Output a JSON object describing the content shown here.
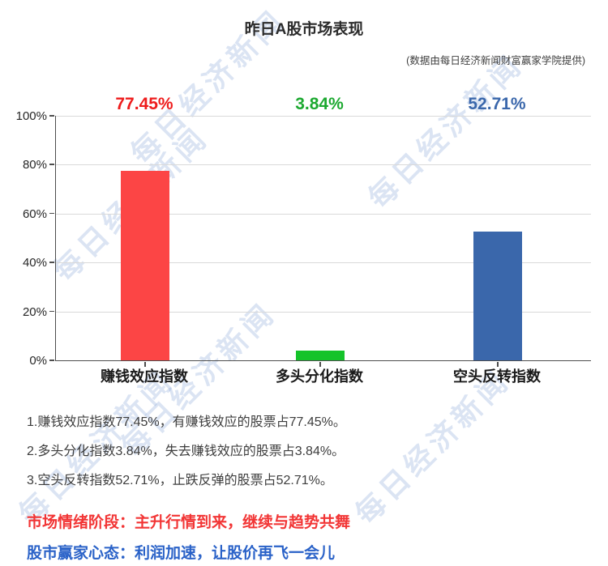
{
  "title": "昨日A股市场表现",
  "source_note": "(数据由每日经济新闻财富赢家学院提供)",
  "watermark": {
    "text": "每日经济新闻",
    "color": "rgba(106,142,203,0.24)"
  },
  "chart_data": {
    "type": "bar",
    "title": "昨日A股市场表现",
    "categories": [
      "赚钱效应指数",
      "多头分化指数",
      "空头反转指数"
    ],
    "values": [
      77.45,
      3.84,
      52.71
    ],
    "value_labels": [
      "77.45%",
      "3.84%",
      "52.71%"
    ],
    "bar_colors": [
      "#fc4545",
      "#15c32a",
      "#3a67ab"
    ],
    "value_label_colors": [
      "#ee1c1c",
      "#1ca930",
      "#3a67ab"
    ],
    "xlabel": "",
    "ylabel": "",
    "ylim": [
      0,
      100
    ],
    "ytick_values": [
      0,
      20,
      40,
      60,
      80,
      100
    ],
    "ytick_labels": [
      "0%",
      "20%",
      "40%",
      "60%",
      "80%",
      "100%"
    ],
    "grid": true,
    "legend": false
  },
  "notes": [
    "1.赚钱效应指数77.45%，有赚钱效应的股票占77.45%。",
    "2.多头分化指数3.84%，失去赚钱效应的股票占3.84%。",
    "3.空头反转指数52.71%，止跌反弹的股票占52.71%。"
  ],
  "sentiment": {
    "stage": "市场情绪阶段：主升行情到来，继续与趋势共舞",
    "stage_color": "#f23535",
    "mindset": "股市赢家心态：利润加速，让股价再飞一会儿",
    "mindset_color": "#2a62c8"
  }
}
